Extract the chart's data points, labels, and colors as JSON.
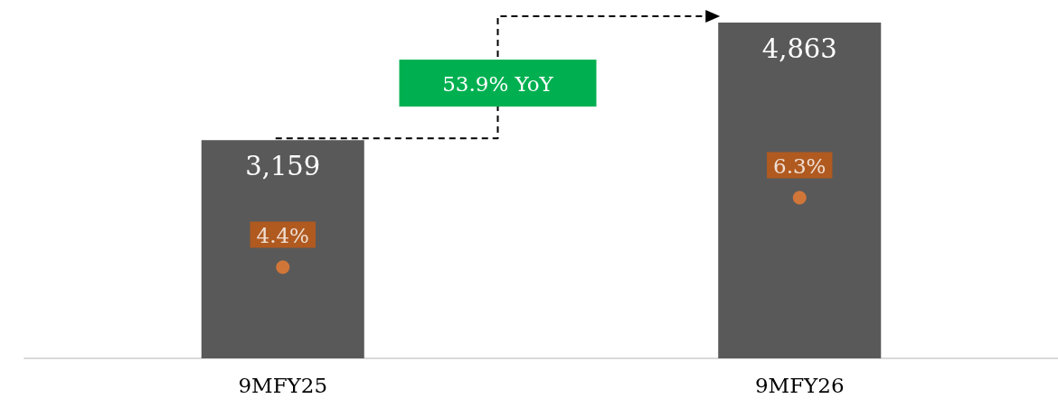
{
  "chart_data": {
    "type": "bar",
    "categories": [
      "9MFY25",
      "9MFY26"
    ],
    "series": [
      {
        "color": "#595959",
        "values": [
          3159,
          4863
        ],
        "value_labels": [
          "3,159",
          "4,863"
        ]
      },
      {
        "type": "scatter",
        "axis": "y2",
        "color": "#ed7d31",
        "values": [
          4.4,
          6.3
        ],
        "value_labels": [
          "4.4%",
          "6.3%"
        ]
      }
    ],
    "ylim": [
      0,
      4863
    ],
    "y2lim": [
      1.9,
      11.1
    ],
    "tick_labels": "x",
    "grid": false,
    "marker": "circle",
    "annotations": [
      "53.9% YoY"
    ]
  }
}
